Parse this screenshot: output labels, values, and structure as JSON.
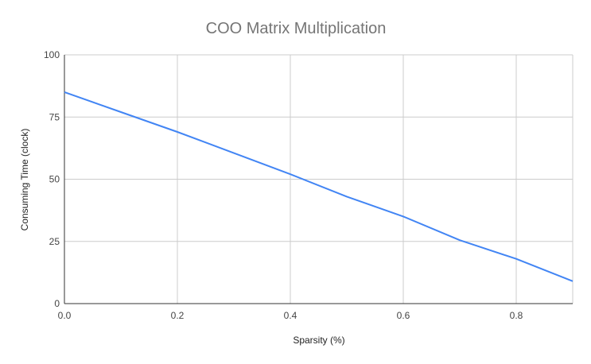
{
  "chart_data": {
    "type": "line",
    "title": "COO Matrix Multiplication",
    "xlabel": "Sparsity (%)",
    "ylabel": "Consuming Time (clock)",
    "xlim": [
      0,
      0.9
    ],
    "ylim": [
      0,
      100
    ],
    "x_ticks": [
      "0.0",
      "0.2",
      "0.4",
      "0.6",
      "0.8"
    ],
    "y_ticks": [
      "0",
      "25",
      "50",
      "75",
      "100"
    ],
    "grid": true,
    "legend": "none",
    "series": [
      {
        "color": "#4285f4",
        "x": [
          0.0,
          0.1,
          0.2,
          0.3,
          0.4,
          0.5,
          0.6,
          0.7,
          0.8,
          0.9
        ],
        "y": [
          85,
          77,
          69,
          60.5,
          52,
          43,
          35,
          25.5,
          18,
          9
        ]
      }
    ]
  }
}
